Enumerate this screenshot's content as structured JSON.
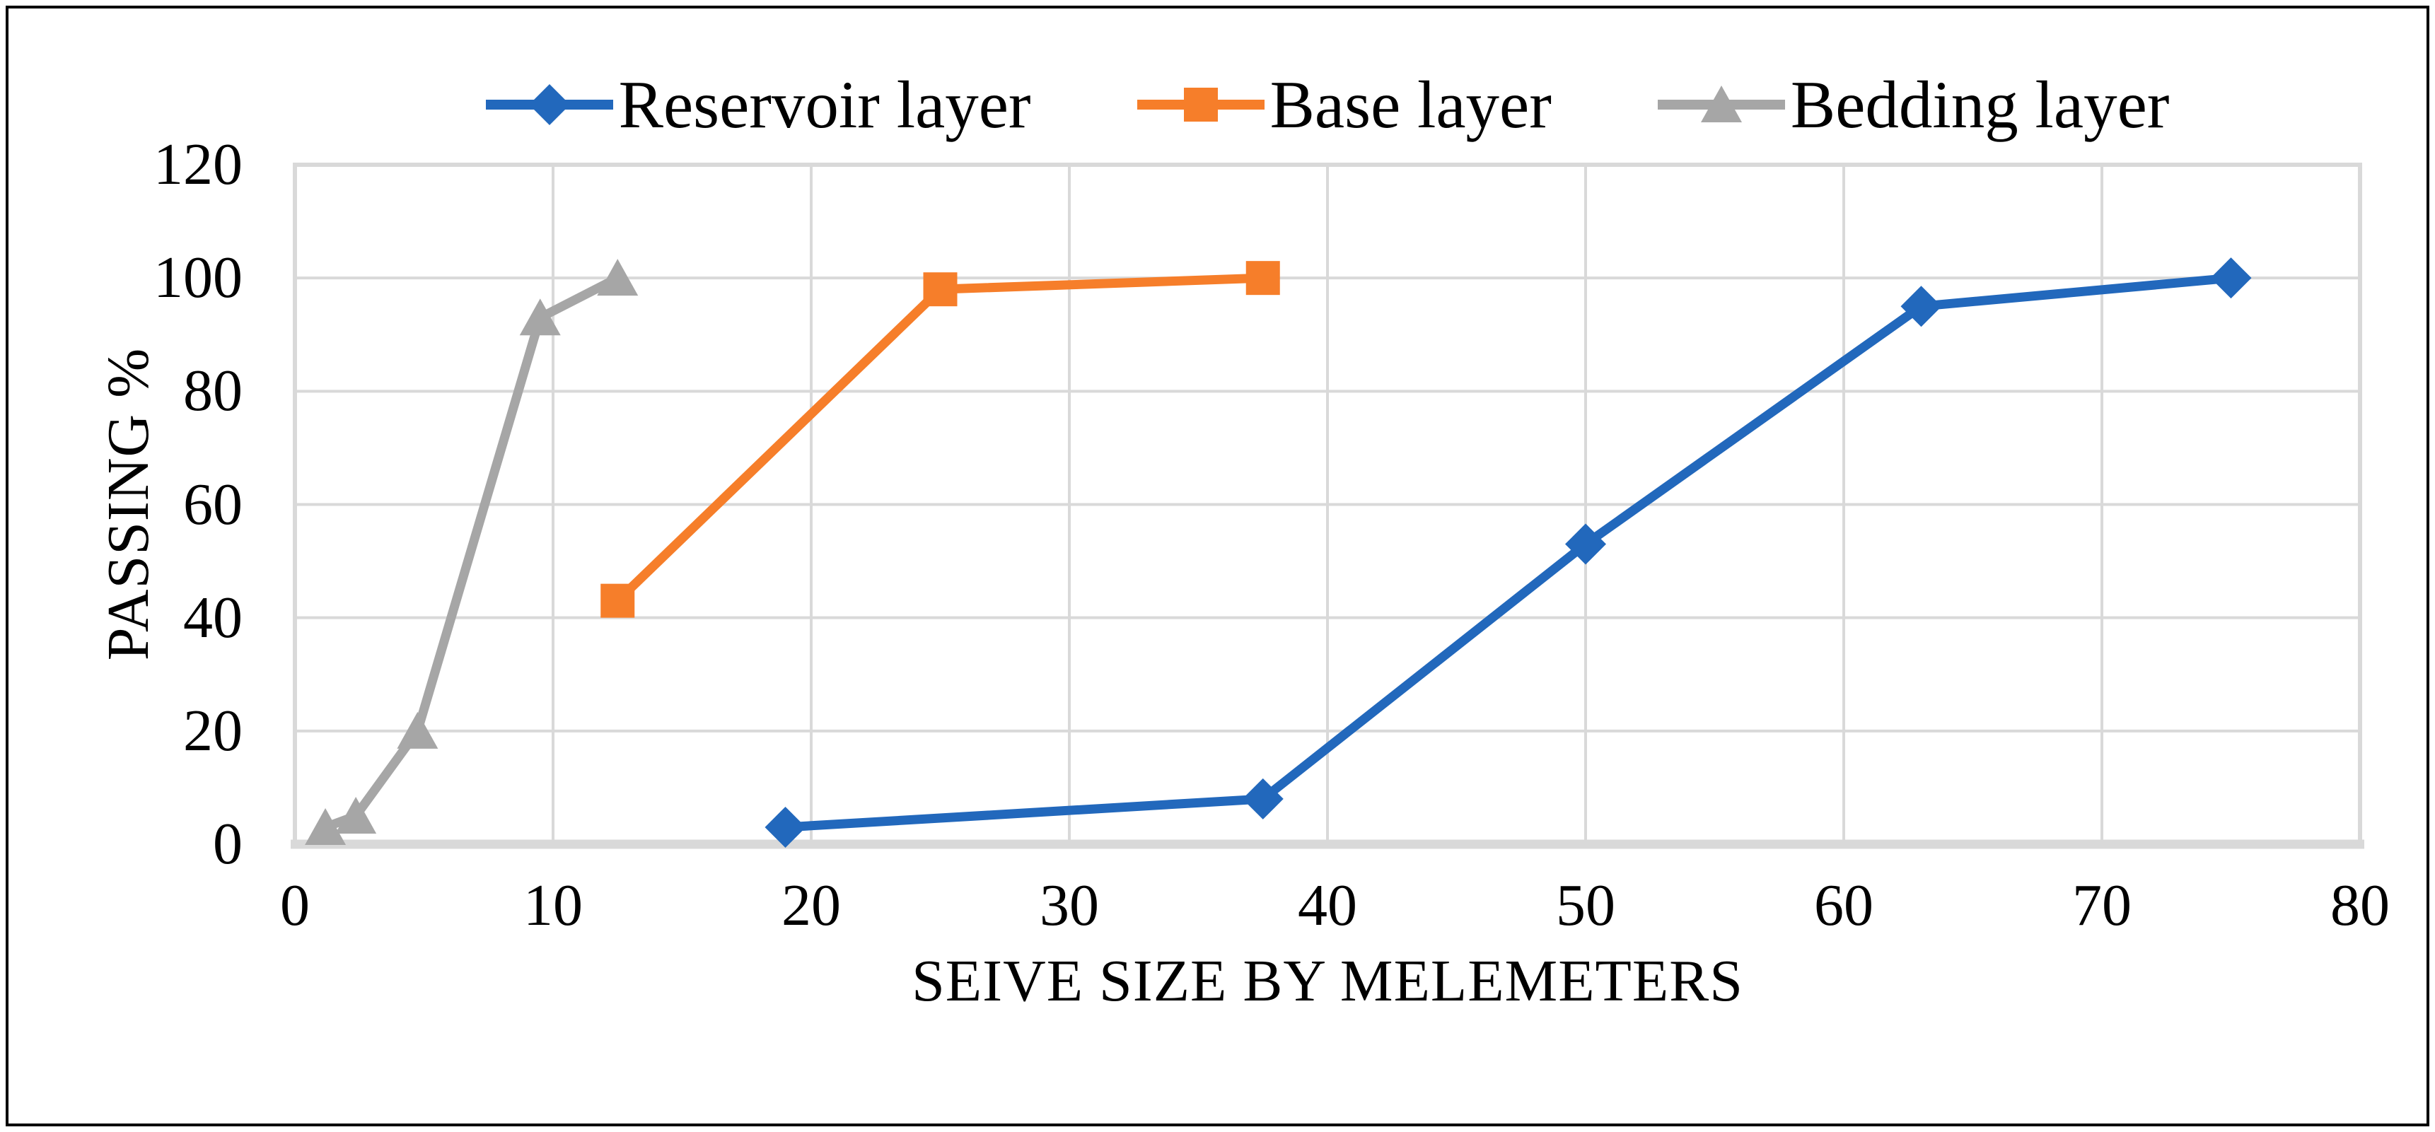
{
  "figure": {
    "background": "#ffffff",
    "outer_border_color": "#000000",
    "gridline_color": "#d9d9d9",
    "axis_line_color": "#d9d9d9",
    "text_color": "#000000"
  },
  "chart_data": {
    "type": "line",
    "title": "",
    "xlabel": "SEIVE SIZE BY MELEMETERS",
    "ylabel": "PASSING %",
    "xlim": [
      0,
      80
    ],
    "ylim": [
      0,
      120
    ],
    "x_ticks": [
      0,
      10,
      20,
      30,
      40,
      50,
      60,
      70,
      80
    ],
    "y_ticks": [
      0,
      20,
      40,
      60,
      80,
      100,
      120
    ],
    "grid": true,
    "legend_position": "top-center",
    "series": [
      {
        "name": "Reservoir layer",
        "marker": "diamond",
        "color": "#2268BC",
        "points": [
          [
            19,
            3
          ],
          [
            37.5,
            8
          ],
          [
            50,
            53
          ],
          [
            63,
            95
          ],
          [
            75,
            100
          ]
        ]
      },
      {
        "name": "Base layer",
        "marker": "square",
        "color": "#F67E2A",
        "points": [
          [
            12.5,
            43
          ],
          [
            25,
            98
          ],
          [
            37.5,
            100
          ]
        ]
      },
      {
        "name": "Bedding layer",
        "marker": "triangle",
        "color": "#A6A6A6",
        "points": [
          [
            1.18,
            3
          ],
          [
            2.36,
            5
          ],
          [
            4.75,
            20
          ],
          [
            9.5,
            93
          ],
          [
            12.5,
            100
          ]
        ]
      }
    ]
  }
}
